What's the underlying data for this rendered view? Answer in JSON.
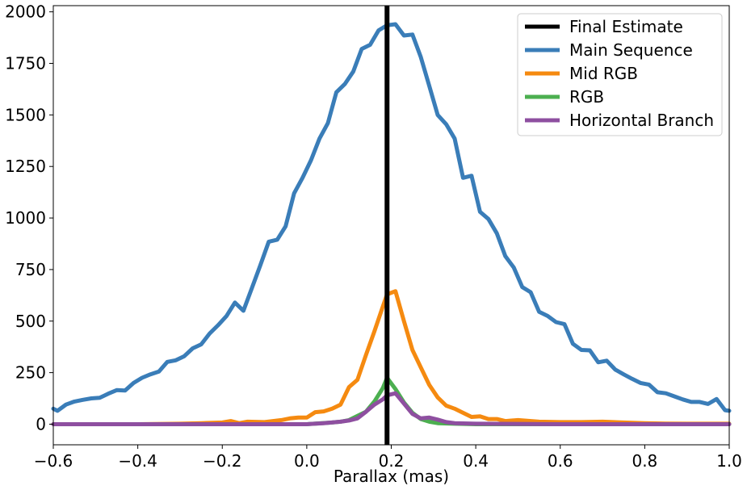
{
  "chart_data": {
    "type": "line",
    "title": "",
    "xlabel": "Parallax (mas)",
    "ylabel": "",
    "xlim": [
      -0.6,
      1.0
    ],
    "ylim": [
      -100,
      2030
    ],
    "xticks": [
      -0.6,
      -0.4,
      -0.2,
      0.0,
      0.2,
      0.4,
      0.6,
      0.8,
      1.0
    ],
    "xtick_labels": [
      "−0.6",
      "−0.4",
      "−0.2",
      "0.0",
      "0.2",
      "0.4",
      "0.6",
      "0.8",
      "1.0"
    ],
    "yticks": [
      0,
      250,
      500,
      750,
      1000,
      1250,
      1500,
      1750,
      2000
    ],
    "ytick_labels": [
      "0",
      "250",
      "500",
      "750",
      "1000",
      "1250",
      "1500",
      "1750",
      "2000"
    ],
    "legend_position": "top-right",
    "vline": {
      "name": "Final Estimate",
      "x": 0.19,
      "color": "#000000"
    },
    "series": [
      {
        "name": "Main Sequence",
        "color": "#3a7db8",
        "x": [
          -0.6,
          -0.59,
          -0.57,
          -0.55,
          -0.53,
          -0.51,
          -0.49,
          -0.47,
          -0.45,
          -0.43,
          -0.41,
          -0.39,
          -0.37,
          -0.35,
          -0.33,
          -0.31,
          -0.29,
          -0.27,
          -0.25,
          -0.23,
          -0.21,
          -0.19,
          -0.17,
          -0.15,
          -0.13,
          -0.11,
          -0.09,
          -0.07,
          -0.05,
          -0.03,
          -0.01,
          0.01,
          0.03,
          0.05,
          0.07,
          0.09,
          0.11,
          0.13,
          0.15,
          0.17,
          0.19,
          0.21,
          0.23,
          0.25,
          0.27,
          0.29,
          0.31,
          0.33,
          0.35,
          0.37,
          0.39,
          0.41,
          0.43,
          0.45,
          0.47,
          0.49,
          0.51,
          0.53,
          0.55,
          0.57,
          0.59,
          0.61,
          0.63,
          0.65,
          0.67,
          0.69,
          0.71,
          0.73,
          0.75,
          0.77,
          0.79,
          0.81,
          0.83,
          0.85,
          0.87,
          0.89,
          0.91,
          0.93,
          0.95,
          0.97,
          0.99,
          1.0
        ],
        "values": [
          75,
          65,
          95,
          110,
          118,
          125,
          128,
          148,
          165,
          163,
          200,
          225,
          242,
          255,
          302,
          310,
          330,
          368,
          387,
          440,
          480,
          525,
          590,
          550,
          660,
          770,
          885,
          895,
          960,
          1120,
          1195,
          1280,
          1385,
          1460,
          1610,
          1650,
          1710,
          1820,
          1840,
          1910,
          1935,
          1940,
          1885,
          1890,
          1780,
          1640,
          1500,
          1455,
          1385,
          1195,
          1205,
          1030,
          995,
          925,
          815,
          760,
          665,
          640,
          545,
          525,
          495,
          485,
          390,
          360,
          358,
          300,
          308,
          265,
          242,
          220,
          200,
          192,
          155,
          150,
          135,
          120,
          108,
          108,
          98,
          122,
          68,
          65
        ]
      },
      {
        "name": "Mid RGB",
        "color": "#f58a10",
        "x": [
          -0.6,
          -0.4,
          -0.3,
          -0.25,
          -0.2,
          -0.18,
          -0.16,
          -0.14,
          -0.1,
          -0.06,
          -0.04,
          -0.02,
          0.0,
          0.02,
          0.04,
          0.06,
          0.08,
          0.1,
          0.12,
          0.14,
          0.16,
          0.18,
          0.19,
          0.21,
          0.23,
          0.25,
          0.27,
          0.29,
          0.31,
          0.33,
          0.35,
          0.37,
          0.39,
          0.41,
          0.43,
          0.45,
          0.47,
          0.5,
          0.55,
          0.6,
          0.65,
          0.7,
          0.75,
          0.8,
          0.85,
          0.9,
          1.0
        ],
        "values": [
          0,
          0,
          2,
          5,
          8,
          15,
          5,
          12,
          10,
          20,
          28,
          32,
          32,
          58,
          62,
          75,
          95,
          180,
          215,
          335,
          450,
          570,
          630,
          645,
          500,
          360,
          275,
          190,
          130,
          90,
          75,
          55,
          35,
          38,
          25,
          25,
          15,
          20,
          12,
          10,
          10,
          12,
          8,
          5,
          3,
          2,
          2
        ]
      },
      {
        "name": "RGB",
        "color": "#4caf50",
        "x": [
          -0.6,
          -0.2,
          0.0,
          0.06,
          0.08,
          0.1,
          0.12,
          0.14,
          0.16,
          0.18,
          0.19,
          0.21,
          0.23,
          0.25,
          0.27,
          0.29,
          0.31,
          0.35,
          0.4,
          0.6,
          1.0
        ],
        "values": [
          0,
          0,
          0,
          8,
          12,
          20,
          40,
          60,
          110,
          175,
          225,
          170,
          105,
          55,
          25,
          12,
          5,
          2,
          0,
          0,
          0
        ]
      },
      {
        "name": "Horizontal Branch",
        "color": "#8e4fa0",
        "x": [
          -0.6,
          -0.2,
          0.0,
          0.04,
          0.08,
          0.1,
          0.12,
          0.14,
          0.16,
          0.18,
          0.19,
          0.21,
          0.23,
          0.25,
          0.27,
          0.29,
          0.31,
          0.33,
          0.35,
          0.4,
          0.6,
          1.0
        ],
        "values": [
          0,
          0,
          0,
          5,
          12,
          18,
          28,
          60,
          95,
          120,
          140,
          150,
          100,
          50,
          28,
          32,
          22,
          10,
          5,
          2,
          0,
          0
        ]
      }
    ]
  }
}
